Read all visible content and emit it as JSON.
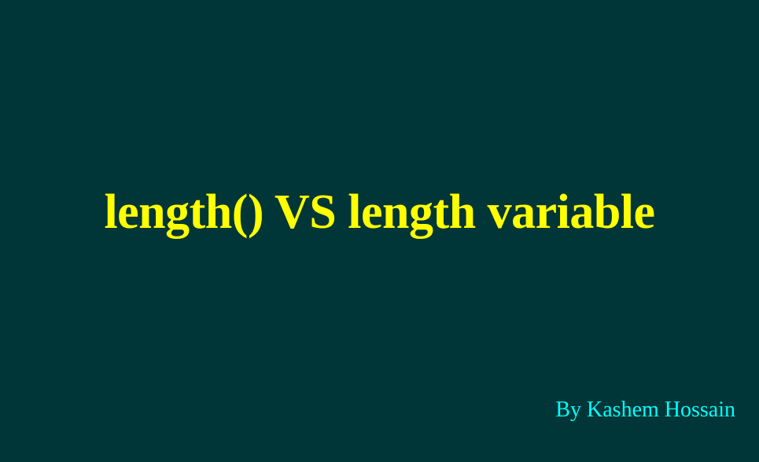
{
  "slide": {
    "title": "length() VS length variable",
    "byline": "By Kashem Hossain"
  },
  "colors": {
    "background": "#003637",
    "title": "#ffff00",
    "byline": "#00ffff"
  }
}
